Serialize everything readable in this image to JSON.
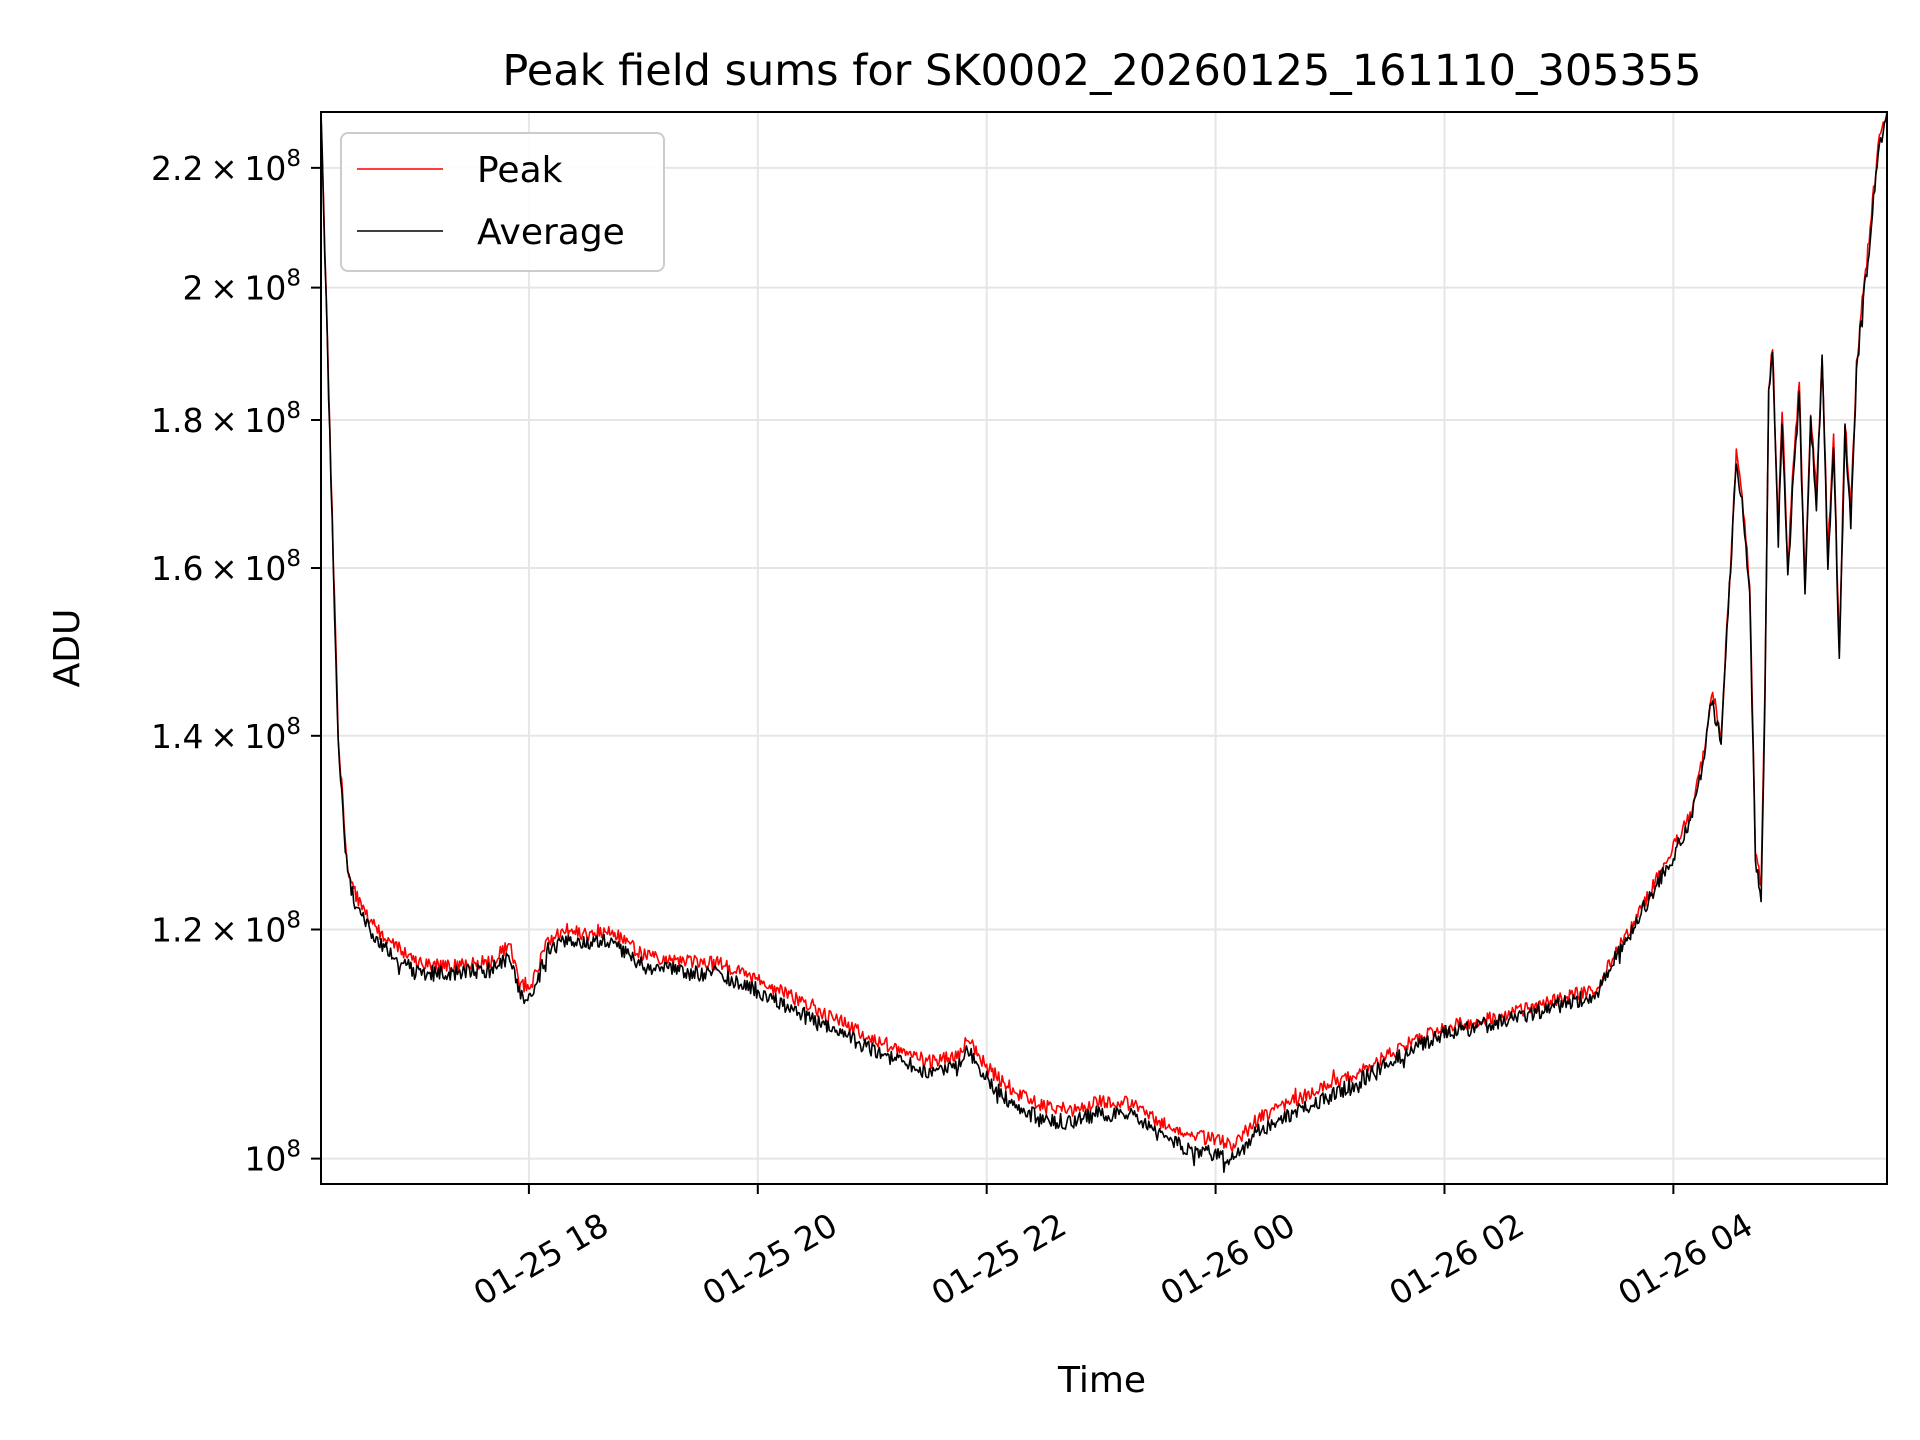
{
  "chart_data": {
    "type": "line",
    "title": "Peak field sums for SK0002_20260125_161110_305355",
    "xlabel": "Time",
    "ylabel": "ADU",
    "yscale": "log",
    "grid": true,
    "legend_position": "top-left",
    "xlim": [
      "2026-01-25 16:11",
      "2026-01-26 05:52"
    ],
    "ylim": [
      98000000,
      230000000
    ],
    "x_ticks": [
      {
        "x": "2026-01-25 18:00",
        "label": "01-25 18"
      },
      {
        "x": "2026-01-25 20:00",
        "label": "01-25 20"
      },
      {
        "x": "2026-01-25 22:00",
        "label": "01-25 22"
      },
      {
        "x": "2026-01-26 00:00",
        "label": "01-26 00"
      },
      {
        "x": "2026-01-26 02:00",
        "label": "01-26 02"
      },
      {
        "x": "2026-01-26 04:00",
        "label": "01-26 04"
      }
    ],
    "y_ticks": [
      {
        "value": 100000000,
        "mantissa": "",
        "exponent": "8"
      },
      {
        "value": 120000000,
        "mantissa": "1.2",
        "exponent": "8"
      },
      {
        "value": 140000000,
        "mantissa": "1.4",
        "exponent": "8"
      },
      {
        "value": 160000000,
        "mantissa": "1.6",
        "exponent": "8"
      },
      {
        "value": 180000000,
        "mantissa": "1.8",
        "exponent": "8"
      },
      {
        "value": 200000000,
        "mantissa": "2",
        "exponent": "8"
      },
      {
        "value": 220000000,
        "mantissa": "2.2",
        "exponent": "8"
      }
    ],
    "series": [
      {
        "name": "Peak",
        "color": "#ff0000",
        "points": [
          [
            "2026-01-25 16:11",
            230000000
          ],
          [
            "2026-01-25 16:15",
            185000000
          ],
          [
            "2026-01-25 16:20",
            140000000
          ],
          [
            "2026-01-25 16:25",
            126000000
          ],
          [
            "2026-01-25 16:30",
            123000000
          ],
          [
            "2026-01-25 16:40",
            120000000
          ],
          [
            "2026-01-25 16:50",
            118500000
          ],
          [
            "2026-01-25 17:00",
            117000000
          ],
          [
            "2026-01-25 17:20",
            116500000
          ],
          [
            "2026-01-25 17:40",
            117000000
          ],
          [
            "2026-01-25 17:50",
            118500000
          ],
          [
            "2026-01-25 17:55",
            115000000
          ],
          [
            "2026-01-25 18:00",
            114200000
          ],
          [
            "2026-01-25 18:05",
            116500000
          ],
          [
            "2026-01-25 18:10",
            119000000
          ],
          [
            "2026-01-25 18:20",
            120000000
          ],
          [
            "2026-01-25 18:30",
            119500000
          ],
          [
            "2026-01-25 18:40",
            120000000
          ],
          [
            "2026-01-25 18:50",
            119000000
          ],
          [
            "2026-01-25 19:00",
            117500000
          ],
          [
            "2026-01-25 19:20",
            117000000
          ],
          [
            "2026-01-25 19:40",
            116800000
          ],
          [
            "2026-01-25 20:00",
            115200000
          ],
          [
            "2026-01-25 20:15",
            114000000
          ],
          [
            "2026-01-25 20:30",
            112500000
          ],
          [
            "2026-01-25 20:45",
            111500000
          ],
          [
            "2026-01-25 21:00",
            110000000
          ],
          [
            "2026-01-25 21:15",
            109000000
          ],
          [
            "2026-01-25 21:30",
            108000000
          ],
          [
            "2026-01-25 21:45",
            108500000
          ],
          [
            "2026-01-25 21:50",
            110000000
          ],
          [
            "2026-01-25 22:00",
            107500000
          ],
          [
            "2026-01-25 22:15",
            105500000
          ],
          [
            "2026-01-25 22:30",
            104200000
          ],
          [
            "2026-01-25 22:45",
            104000000
          ],
          [
            "2026-01-25 23:00",
            104700000
          ],
          [
            "2026-01-25 23:15",
            104500000
          ],
          [
            "2026-01-25 23:30",
            103000000
          ],
          [
            "2026-01-25 23:45",
            102000000
          ],
          [
            "2026-01-26 00:00",
            101500000
          ],
          [
            "2026-01-26 00:10",
            101000000
          ],
          [
            "2026-01-26 00:20",
            103000000
          ],
          [
            "2026-01-26 00:40",
            104700000
          ],
          [
            "2026-01-26 01:00",
            106000000
          ],
          [
            "2026-01-26 01:20",
            107500000
          ],
          [
            "2026-01-26 01:40",
            109500000
          ],
          [
            "2026-01-26 02:00",
            111000000
          ],
          [
            "2026-01-26 02:30",
            112000000
          ],
          [
            "2026-01-26 03:00",
            113500000
          ],
          [
            "2026-01-26 03:20",
            114500000
          ],
          [
            "2026-01-26 03:30",
            118000000
          ],
          [
            "2026-01-26 03:40",
            121000000
          ],
          [
            "2026-01-26 03:50",
            124500000
          ],
          [
            "2026-01-26 04:00",
            128000000
          ],
          [
            "2026-01-26 04:10",
            132000000
          ],
          [
            "2026-01-26 04:15",
            137000000
          ],
          [
            "2026-01-26 04:20",
            145000000
          ],
          [
            "2026-01-26 04:25",
            140000000
          ],
          [
            "2026-01-26 04:30",
            161000000
          ],
          [
            "2026-01-26 04:33",
            175000000
          ],
          [
            "2026-01-26 04:36",
            170000000
          ],
          [
            "2026-01-26 04:40",
            158000000
          ],
          [
            "2026-01-26 04:43",
            128000000
          ],
          [
            "2026-01-26 04:46",
            124000000
          ],
          [
            "2026-01-26 04:48",
            145000000
          ],
          [
            "2026-01-26 04:50",
            185000000
          ],
          [
            "2026-01-26 04:52",
            191000000
          ],
          [
            "2026-01-26 04:55",
            165000000
          ],
          [
            "2026-01-26 04:57",
            182000000
          ],
          [
            "2026-01-26 05:00",
            160000000
          ],
          [
            "2026-01-26 05:03",
            174000000
          ],
          [
            "2026-01-26 05:06",
            185000000
          ],
          [
            "2026-01-26 05:09",
            158000000
          ],
          [
            "2026-01-26 05:12",
            181000000
          ],
          [
            "2026-01-26 05:15",
            170000000
          ],
          [
            "2026-01-26 05:18",
            190000000
          ],
          [
            "2026-01-26 05:21",
            162000000
          ],
          [
            "2026-01-26 05:24",
            178000000
          ],
          [
            "2026-01-26 05:27",
            150000000
          ],
          [
            "2026-01-26 05:30",
            180000000
          ],
          [
            "2026-01-26 05:33",
            167000000
          ],
          [
            "2026-01-26 05:36",
            188000000
          ],
          [
            "2026-01-26 05:39",
            198000000
          ],
          [
            "2026-01-26 05:42",
            206000000
          ],
          [
            "2026-01-26 05:45",
            216000000
          ],
          [
            "2026-01-26 05:48",
            225000000
          ],
          [
            "2026-01-26 05:52",
            230000000
          ]
        ]
      },
      {
        "name": "Average",
        "color": "#000000",
        "points": [
          [
            "2026-01-25 16:11",
            230000000
          ],
          [
            "2026-01-25 16:15",
            184000000
          ],
          [
            "2026-01-25 16:20",
            139000000
          ],
          [
            "2026-01-25 16:25",
            125000000
          ],
          [
            "2026-01-25 16:30",
            122000000
          ],
          [
            "2026-01-25 16:40",
            119000000
          ],
          [
            "2026-01-25 16:50",
            117500000
          ],
          [
            "2026-01-25 17:00",
            116000000
          ],
          [
            "2026-01-25 17:20",
            115800000
          ],
          [
            "2026-01-25 17:40",
            116200000
          ],
          [
            "2026-01-25 17:50",
            117500000
          ],
          [
            "2026-01-25 17:55",
            114200000
          ],
          [
            "2026-01-25 18:00",
            113500000
          ],
          [
            "2026-01-25 18:05",
            115500000
          ],
          [
            "2026-01-25 18:10",
            118000000
          ],
          [
            "2026-01-25 18:20",
            119000000
          ],
          [
            "2026-01-25 18:30",
            118500000
          ],
          [
            "2026-01-25 18:40",
            119000000
          ],
          [
            "2026-01-25 18:50",
            118000000
          ],
          [
            "2026-01-25 19:00",
            116500000
          ],
          [
            "2026-01-25 19:20",
            116000000
          ],
          [
            "2026-01-25 19:40",
            115800000
          ],
          [
            "2026-01-25 20:00",
            114300000
          ],
          [
            "2026-01-25 20:15",
            113000000
          ],
          [
            "2026-01-25 20:30",
            111500000
          ],
          [
            "2026-01-25 20:45",
            110500000
          ],
          [
            "2026-01-25 21:00",
            109000000
          ],
          [
            "2026-01-25 21:15",
            108000000
          ],
          [
            "2026-01-25 21:30",
            107000000
          ],
          [
            "2026-01-25 21:45",
            107500000
          ],
          [
            "2026-01-25 21:50",
            109200000
          ],
          [
            "2026-01-25 22:00",
            106500000
          ],
          [
            "2026-01-25 22:15",
            104300000
          ],
          [
            "2026-01-25 22:30",
            103000000
          ],
          [
            "2026-01-25 22:45",
            103000000
          ],
          [
            "2026-01-25 23:00",
            103700000
          ],
          [
            "2026-01-25 23:15",
            103500000
          ],
          [
            "2026-01-25 23:30",
            102000000
          ],
          [
            "2026-01-25 23:45",
            100800000
          ],
          [
            "2026-01-26 00:00",
            100300000
          ],
          [
            "2026-01-26 00:10",
            99800000
          ],
          [
            "2026-01-26 00:20",
            102000000
          ],
          [
            "2026-01-26 00:40",
            103700000
          ],
          [
            "2026-01-26 01:00",
            105000000
          ],
          [
            "2026-01-26 01:20",
            106800000
          ],
          [
            "2026-01-26 01:40",
            108800000
          ],
          [
            "2026-01-26 02:00",
            110500000
          ],
          [
            "2026-01-26 02:30",
            111500000
          ],
          [
            "2026-01-26 03:00",
            113000000
          ],
          [
            "2026-01-26 03:20",
            114000000
          ],
          [
            "2026-01-26 03:30",
            117500000
          ],
          [
            "2026-01-26 03:40",
            120500000
          ],
          [
            "2026-01-26 03:50",
            124000000
          ],
          [
            "2026-01-26 04:00",
            127300000
          ],
          [
            "2026-01-26 04:10",
            131300000
          ],
          [
            "2026-01-26 04:15",
            136200000
          ],
          [
            "2026-01-26 04:20",
            144000000
          ],
          [
            "2026-01-26 04:25",
            139000000
          ],
          [
            "2026-01-26 04:30",
            160000000
          ],
          [
            "2026-01-26 04:33",
            174000000
          ],
          [
            "2026-01-26 04:36",
            168500000
          ],
          [
            "2026-01-26 04:40",
            156500000
          ],
          [
            "2026-01-26 04:43",
            127000000
          ],
          [
            "2026-01-26 04:46",
            123000000
          ],
          [
            "2026-01-26 04:48",
            144000000
          ],
          [
            "2026-01-26 04:50",
            183500000
          ],
          [
            "2026-01-26 04:52",
            189500000
          ],
          [
            "2026-01-26 04:55",
            163500000
          ],
          [
            "2026-01-26 04:57",
            180500000
          ],
          [
            "2026-01-26 05:00",
            158500000
          ],
          [
            "2026-01-26 05:03",
            172500000
          ],
          [
            "2026-01-26 05:06",
            183500000
          ],
          [
            "2026-01-26 05:09",
            156500000
          ],
          [
            "2026-01-26 05:12",
            179500000
          ],
          [
            "2026-01-26 05:15",
            168500000
          ],
          [
            "2026-01-26 05:18",
            188500000
          ],
          [
            "2026-01-26 05:21",
            160500000
          ],
          [
            "2026-01-26 05:24",
            176500000
          ],
          [
            "2026-01-26 05:27",
            148500000
          ],
          [
            "2026-01-26 05:30",
            178500000
          ],
          [
            "2026-01-26 05:33",
            165500000
          ],
          [
            "2026-01-26 05:36",
            186500000
          ],
          [
            "2026-01-26 05:39",
            196500000
          ],
          [
            "2026-01-26 05:42",
            204500000
          ],
          [
            "2026-01-26 05:45",
            215000000
          ],
          [
            "2026-01-26 05:48",
            224000000
          ],
          [
            "2026-01-26 05:52",
            229500000
          ]
        ]
      }
    ]
  }
}
